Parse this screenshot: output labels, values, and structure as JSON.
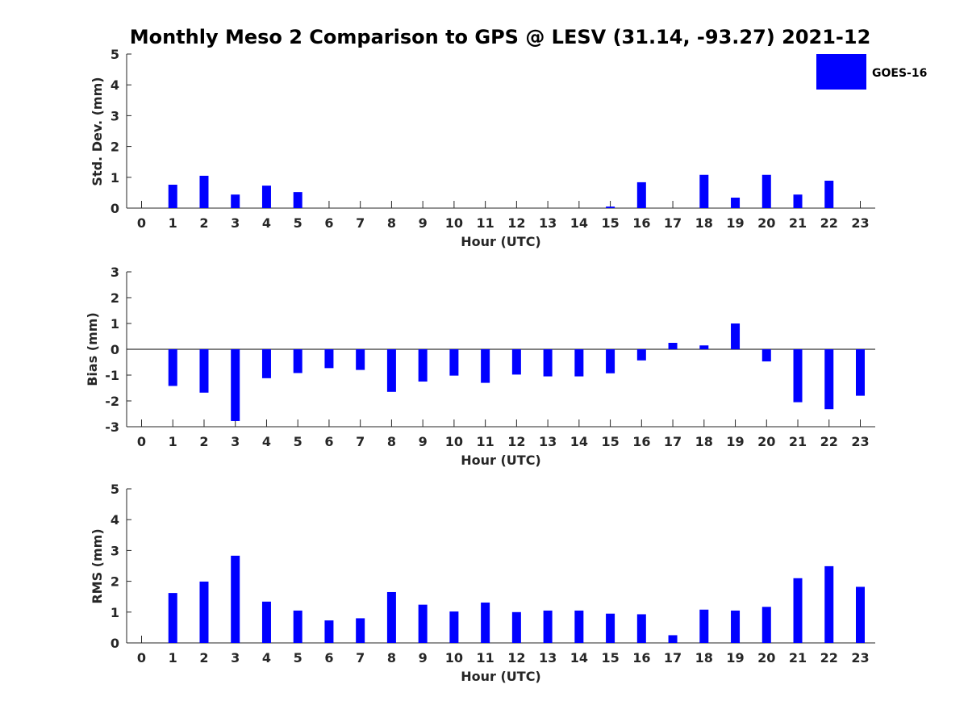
{
  "title": "Monthly Meso 2 Comparison to GPS @ LESV (31.14, -93.27) 2021-12",
  "legend": {
    "label": "GOES-16",
    "color": "#0000ff",
    "placement": "top-right"
  },
  "chart_data": [
    {
      "type": "bar",
      "xlabel": "Hour (UTC)",
      "ylabel": "Std. Dev. (mm)",
      "ylim": [
        0,
        5
      ],
      "yticks": [
        "0",
        "1",
        "2",
        "3",
        "4",
        "5"
      ],
      "categories": [
        "0",
        "1",
        "2",
        "3",
        "4",
        "5",
        "6",
        "7",
        "8",
        "9",
        "10",
        "11",
        "12",
        "13",
        "14",
        "15",
        "16",
        "17",
        "18",
        "19",
        "20",
        "21",
        "22",
        "23"
      ],
      "series": [
        {
          "name": "GOES-16",
          "color": "#0000ff",
          "values": [
            null,
            0.76,
            1.05,
            0.44,
            0.73,
            0.52,
            null,
            null,
            null,
            null,
            null,
            null,
            null,
            null,
            null,
            0.05,
            0.84,
            null,
            1.08,
            0.34,
            1.08,
            0.44,
            0.89,
            null
          ]
        }
      ]
    },
    {
      "type": "bar",
      "xlabel": "Hour (UTC)",
      "ylabel": "Bias (mm)",
      "ylim": [
        -3,
        3
      ],
      "yticks": [
        "-3",
        "-2",
        "-1",
        "0",
        "1",
        "2",
        "3"
      ],
      "categories": [
        "0",
        "1",
        "2",
        "3",
        "4",
        "5",
        "6",
        "7",
        "8",
        "9",
        "10",
        "11",
        "12",
        "13",
        "14",
        "15",
        "16",
        "17",
        "18",
        "19",
        "20",
        "21",
        "22",
        "23"
      ],
      "series": [
        {
          "name": "GOES-16",
          "color": "#0000ff",
          "values": [
            null,
            -1.42,
            -1.68,
            -2.78,
            -1.12,
            -0.92,
            -0.73,
            -0.8,
            -1.65,
            -1.25,
            -1.02,
            -1.3,
            -0.98,
            -1.05,
            -1.05,
            -0.93,
            -0.43,
            0.25,
            0.15,
            1.0,
            -0.47,
            -2.05,
            -2.32,
            -1.8
          ]
        }
      ]
    },
    {
      "type": "bar",
      "xlabel": "Hour (UTC)",
      "ylabel": "RMS (mm)",
      "ylim": [
        0,
        5
      ],
      "yticks": [
        "0",
        "1",
        "2",
        "3",
        "4",
        "5"
      ],
      "categories": [
        "0",
        "1",
        "2",
        "3",
        "4",
        "5",
        "6",
        "7",
        "8",
        "9",
        "10",
        "11",
        "12",
        "13",
        "14",
        "15",
        "16",
        "17",
        "18",
        "19",
        "20",
        "21",
        "22",
        "23"
      ],
      "series": [
        {
          "name": "GOES-16",
          "color": "#0000ff",
          "values": [
            null,
            1.62,
            1.99,
            2.83,
            1.34,
            1.05,
            0.73,
            0.8,
            1.65,
            1.24,
            1.02,
            1.31,
            1.0,
            1.05,
            1.05,
            0.95,
            0.93,
            0.25,
            1.08,
            1.05,
            1.17,
            2.1,
            2.49,
            1.82
          ]
        }
      ]
    }
  ]
}
